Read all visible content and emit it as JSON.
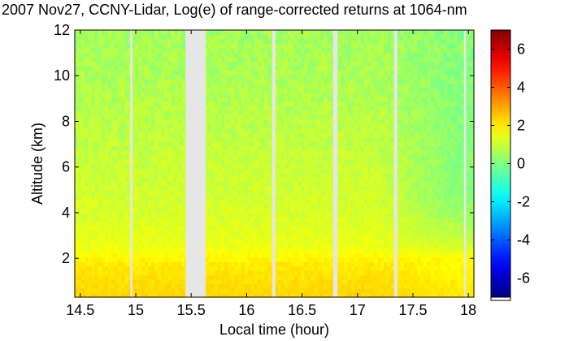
{
  "chart_data": {
    "type": "heatmap",
    "title": "2007 Nov27, CCNY-Lidar, Log(e) of range-corrected returns at 1064-nm",
    "xlabel": "Local time (hour)",
    "ylabel": "Altitude (km)",
    "xlim": [
      14.45,
      18.05
    ],
    "ylim": [
      0.3,
      12
    ],
    "x_ticks": [
      14.5,
      15,
      15.5,
      16,
      16.5,
      17,
      17.5,
      18
    ],
    "x_tick_labels": [
      "14.5",
      "15",
      "15.5",
      "16",
      "16.5",
      "17",
      "17.5",
      "18"
    ],
    "y_ticks": [
      2,
      4,
      6,
      8,
      10,
      12
    ],
    "y_tick_labels": [
      "2",
      "4",
      "6",
      "8",
      "10",
      "12"
    ],
    "colorbar": {
      "min": -7,
      "max": 7,
      "ticks": [
        6,
        4,
        2,
        0,
        -2,
        -4,
        -6
      ],
      "tick_labels": [
        "6",
        "4",
        "2",
        "0",
        "-2",
        "-4",
        "-6"
      ],
      "colormap": "jet"
    },
    "no_data_intervals": [
      [
        15.45,
        15.63
      ],
      [
        14.95,
        14.97
      ],
      [
        16.23,
        16.26
      ],
      [
        16.78,
        16.82
      ],
      [
        17.33,
        17.36
      ],
      [
        17.96,
        17.98
      ]
    ],
    "boundary_layer_top_km": 1.8,
    "value_profile_by_altitude": {
      "altitude_km": [
        0.3,
        1.0,
        1.8,
        2.5,
        4,
        6,
        8,
        10,
        12
      ],
      "value": [
        2.3,
        2.2,
        2.0,
        1.5,
        1.2,
        1.0,
        0.8,
        0.6,
        0.5
      ]
    },
    "late_afternoon_upper_value": 0.1,
    "grid": false,
    "colors": {
      "no_data": "#e6e6e6",
      "plot_frame": "#000000",
      "background": "#ffffff"
    }
  }
}
